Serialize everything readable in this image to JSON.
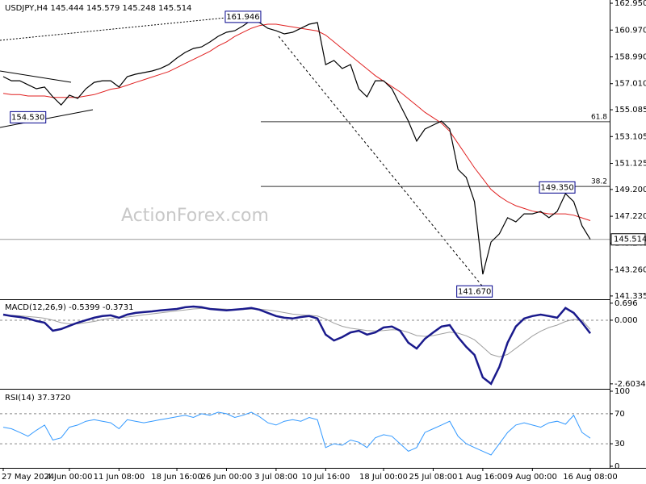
{
  "chart_data": [
    {
      "type": "line",
      "title": "USDJPY,H4  145.444 145.579 145.248 145.514",
      "watermark": "ActionForex.com",
      "categories": [
        "27 May 2024",
        null,
        null,
        null,
        null,
        null,
        null,
        null,
        "4 Jun 00:00",
        null,
        null,
        null,
        null,
        null,
        "11 Jun 08:00",
        null,
        null,
        null,
        null,
        null,
        null,
        "18 Jun 16:00",
        null,
        null,
        null,
        null,
        null,
        "26 Jun 00:00",
        null,
        null,
        null,
        null,
        null,
        "3 Jul 08:00",
        null,
        null,
        null,
        null,
        null,
        "10 Jul 16:00",
        null,
        null,
        null,
        null,
        null,
        null,
        "18 Jul 00:00",
        null,
        null,
        null,
        null,
        null,
        "25 Jul 08:00",
        null,
        null,
        null,
        null,
        null,
        "1 Aug 16:00",
        null,
        null,
        null,
        null,
        null,
        "9 Aug 00:00",
        null,
        null,
        null,
        null,
        null,
        null,
        "16 Aug 08:00"
      ],
      "series": [
        {
          "name": "Close",
          "color": "#000000",
          "values": [
            157.53,
            157.23,
            157.23,
            156.93,
            156.64,
            156.76,
            156.04,
            155.44,
            156.16,
            155.92,
            156.64,
            157.11,
            157.23,
            157.23,
            156.76,
            157.53,
            157.71,
            157.83,
            157.95,
            158.13,
            158.42,
            158.9,
            159.32,
            159.61,
            159.73,
            160.09,
            160.51,
            160.81,
            160.92,
            161.28,
            161.7,
            161.52,
            161.1,
            160.92,
            160.69,
            160.81,
            161.1,
            161.4,
            161.52,
            158.42,
            158.72,
            158.13,
            158.42,
            156.64,
            156.04,
            157.23,
            157.23,
            156.64,
            155.44,
            154.25,
            152.77,
            153.66,
            153.96,
            154.25,
            153.66,
            150.68,
            150.09,
            148.3,
            142.94,
            145.32,
            145.92,
            147.11,
            146.81,
            147.4,
            147.4,
            147.58,
            147.11,
            147.58,
            148.89,
            148.3,
            146.51,
            145.514
          ]
        },
        {
          "name": "MA",
          "color": "#e02020",
          "values": [
            156.3,
            156.2,
            156.2,
            156.1,
            156.1,
            156.1,
            156.0,
            156.0,
            156.0,
            156.0,
            156.1,
            156.2,
            156.4,
            156.6,
            156.7,
            156.9,
            157.1,
            157.3,
            157.5,
            157.7,
            157.9,
            158.2,
            158.5,
            158.8,
            159.1,
            159.4,
            159.8,
            160.1,
            160.5,
            160.8,
            161.1,
            161.3,
            161.4,
            161.4,
            161.3,
            161.2,
            161.1,
            161.0,
            160.9,
            160.6,
            160.1,
            159.6,
            159.1,
            158.6,
            158.1,
            157.6,
            157.2,
            156.8,
            156.4,
            155.9,
            155.4,
            154.9,
            154.5,
            154.1,
            153.5,
            152.6,
            151.7,
            150.8,
            150.0,
            149.2,
            148.7,
            148.3,
            148.0,
            147.8,
            147.6,
            147.5,
            147.4,
            147.4,
            147.4,
            147.3,
            147.1,
            146.9
          ]
        }
      ],
      "ylim": [
        141.15,
        163.19
      ],
      "yticks": [
        {
          "value": 162.95,
          "label": "162.950"
        },
        {
          "value": 160.97,
          "label": "160.970"
        },
        {
          "value": 158.99,
          "label": "158.990"
        },
        {
          "value": 157.01,
          "label": "157.010"
        },
        {
          "value": 155.085,
          "label": "155.085"
        },
        {
          "value": 153.105,
          "label": "153.105"
        },
        {
          "value": 151.125,
          "label": "151.125"
        },
        {
          "value": 149.2,
          "label": "149.200"
        },
        {
          "value": 147.22,
          "label": "147.220"
        },
        {
          "value": 145.24,
          "label": "145.240"
        },
        {
          "value": 143.26,
          "label": "143.260"
        },
        {
          "value": 141.335,
          "label": "141.335"
        }
      ],
      "last_price": 145.514,
      "price_labels": [
        161.946,
        {
          "value": 154.53,
          "label": "154.530"
        },
        {
          "value": 141.67,
          "label": "141.670"
        },
        {
          "value": 149.35,
          "label": "149.350"
        }
      ],
      "fib_levels": [
        {
          "value": 154.2,
          "label": "61.8"
        },
        {
          "value": 149.42,
          "label": "38.2"
        }
      ]
    },
    {
      "type": "line",
      "title": "MACD(12,26,9) -0.5399 -0.3731",
      "series": [
        {
          "name": "MACD",
          "color": "#1a1a8c",
          "values": [
            0.23,
            0.17,
            0.13,
            0.07,
            -0.03,
            -0.1,
            -0.43,
            -0.36,
            -0.23,
            -0.1,
            0,
            0.1,
            0.17,
            0.2,
            0.1,
            0.23,
            0.3,
            0.33,
            0.36,
            0.4,
            0.43,
            0.46,
            0.53,
            0.56,
            0.53,
            0.46,
            0.43,
            0.4,
            0.43,
            0.46,
            0.5,
            0.43,
            0.3,
            0.17,
            0.1,
            0.07,
            0.13,
            0.17,
            0.07,
            -0.59,
            -0.83,
            -0.69,
            -0.5,
            -0.43,
            -0.59,
            -0.5,
            -0.3,
            -0.26,
            -0.43,
            -0.92,
            -1.16,
            -0.76,
            -0.5,
            -0.26,
            -0.2,
            -0.69,
            -1.09,
            -1.42,
            -2.34,
            -2.6,
            -1.91,
            -0.92,
            -0.26,
            0.07,
            0.17,
            0.23,
            0.17,
            0.1,
            0.5,
            0.3,
            -0.1,
            -0.5399
          ]
        },
        {
          "name": "Signal",
          "color": "#a0a0a0",
          "values": [
            0.2,
            0.2,
            0.18,
            0.15,
            0.12,
            0.08,
            0,
            -0.1,
            -0.15,
            -0.15,
            -0.1,
            -0.05,
            0.02,
            0.08,
            0.1,
            0.13,
            0.17,
            0.22,
            0.26,
            0.3,
            0.34,
            0.38,
            0.42,
            0.46,
            0.48,
            0.48,
            0.47,
            0.45,
            0.44,
            0.44,
            0.45,
            0.45,
            0.42,
            0.37,
            0.31,
            0.25,
            0.22,
            0.2,
            0.17,
            0.05,
            -0.12,
            -0.25,
            -0.33,
            -0.37,
            -0.42,
            -0.44,
            -0.42,
            -0.39,
            -0.4,
            -0.5,
            -0.63,
            -0.66,
            -0.63,
            -0.56,
            -0.49,
            -0.53,
            -0.64,
            -0.8,
            -1.1,
            -1.4,
            -1.5,
            -1.4,
            -1.15,
            -0.9,
            -0.65,
            -0.45,
            -0.3,
            -0.2,
            -0.05,
            0.03,
            0,
            -0.3731
          ]
        }
      ],
      "ylim": [
        -2.74,
        0.79
      ],
      "yticks": [
        0.696,
        {
          "value": 0,
          "label": "0.000"
        },
        -2.6034
      ]
    },
    {
      "type": "line",
      "title": "RSI(14) 37.3720",
      "series": [
        {
          "name": "RSI",
          "color": "#3399ff",
          "values": [
            52,
            50,
            45,
            40,
            48,
            55,
            35,
            38,
            52,
            55,
            60,
            62,
            60,
            58,
            50,
            62,
            60,
            58,
            60,
            62,
            64,
            66,
            68,
            65,
            70,
            68,
            72,
            70,
            65,
            68,
            72,
            66,
            58,
            55,
            60,
            62,
            60,
            65,
            62,
            25,
            30,
            28,
            35,
            32,
            25,
            38,
            42,
            40,
            30,
            20,
            25,
            45,
            50,
            55,
            60,
            40,
            30,
            25,
            20,
            15,
            30,
            45,
            55,
            58,
            55,
            52,
            58,
            60,
            56,
            68,
            45,
            37.372
          ]
        }
      ],
      "ylim": [
        0,
        100
      ],
      "yticks": [
        100,
        70,
        30,
        0
      ],
      "levels": [
        70,
        30
      ]
    }
  ]
}
